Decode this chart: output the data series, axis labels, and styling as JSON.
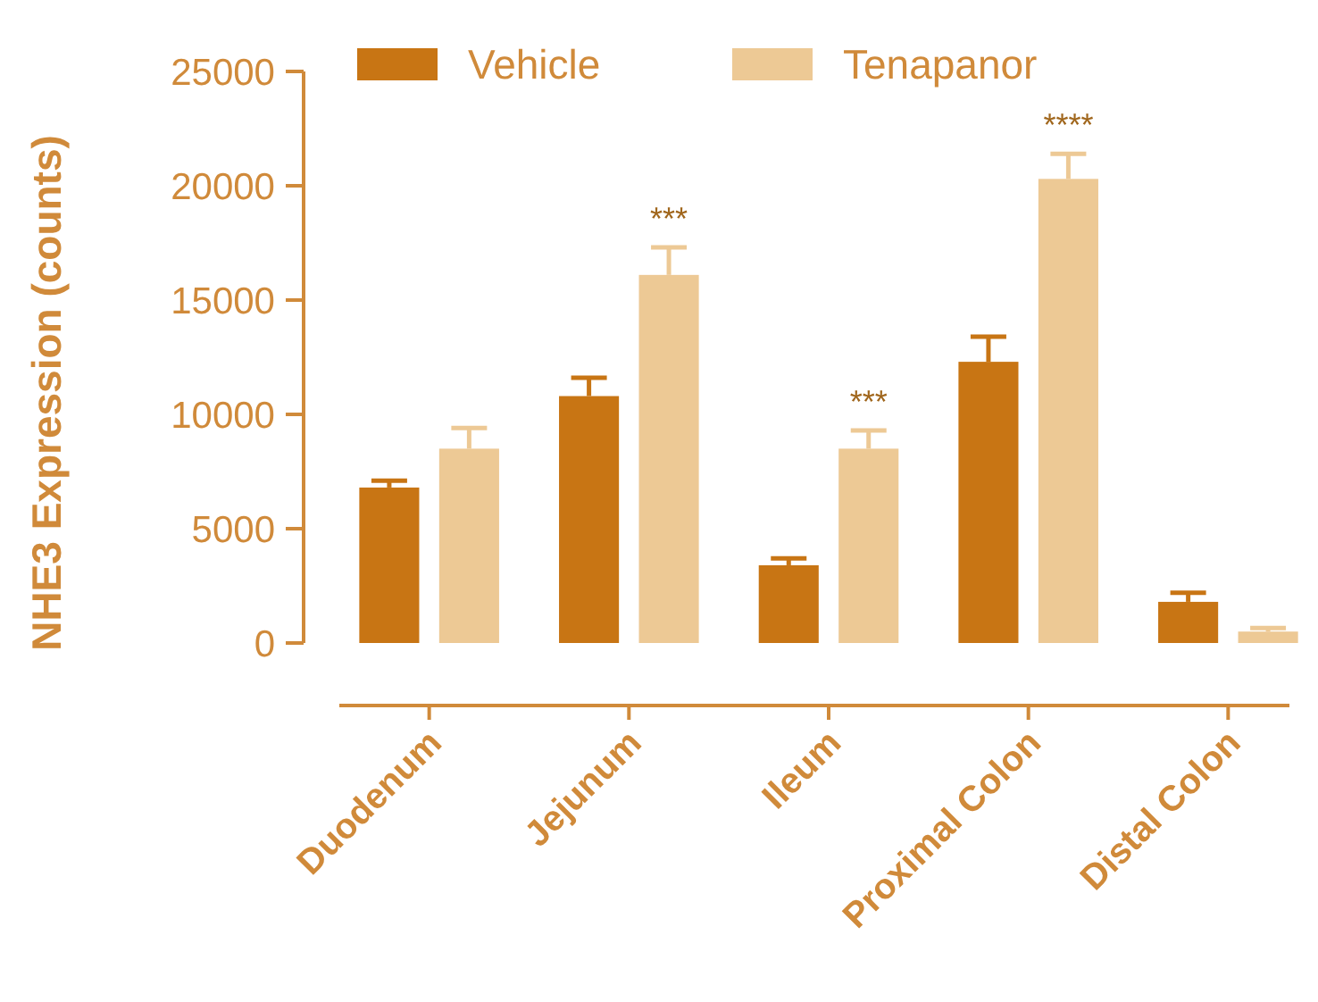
{
  "chart_data": {
    "type": "bar",
    "ylabel": "NHE3 Expression (counts)",
    "categories": [
      "Duodenum",
      "Jejunum",
      "Ileum",
      "Proximal Colon",
      "Distal Colon"
    ],
    "series": [
      {
        "name": "Vehicle",
        "color": "#c87514",
        "values": [
          6800,
          10800,
          3400,
          12300,
          1800
        ],
        "errors": [
          [
            6800,
            7100
          ],
          [
            10800,
            11600
          ],
          [
            3400,
            3700
          ],
          [
            12300,
            13400
          ],
          [
            1800,
            2200
          ]
        ]
      },
      {
        "name": "Tenapanor",
        "color": "#edc995",
        "values": [
          8500,
          16100,
          8500,
          20300,
          500
        ],
        "errors": [
          [
            8500,
            9400
          ],
          [
            16100,
            17300
          ],
          [
            8500,
            9300
          ],
          [
            20300,
            21400
          ],
          [
            500,
            650
          ]
        ]
      }
    ],
    "ylim": [
      0,
      25000
    ],
    "yticks": [
      0,
      5000,
      10000,
      15000,
      20000,
      25000
    ],
    "grid": false,
    "legend": "top",
    "annotations": [
      "***",
      "***",
      "****"
    ]
  }
}
